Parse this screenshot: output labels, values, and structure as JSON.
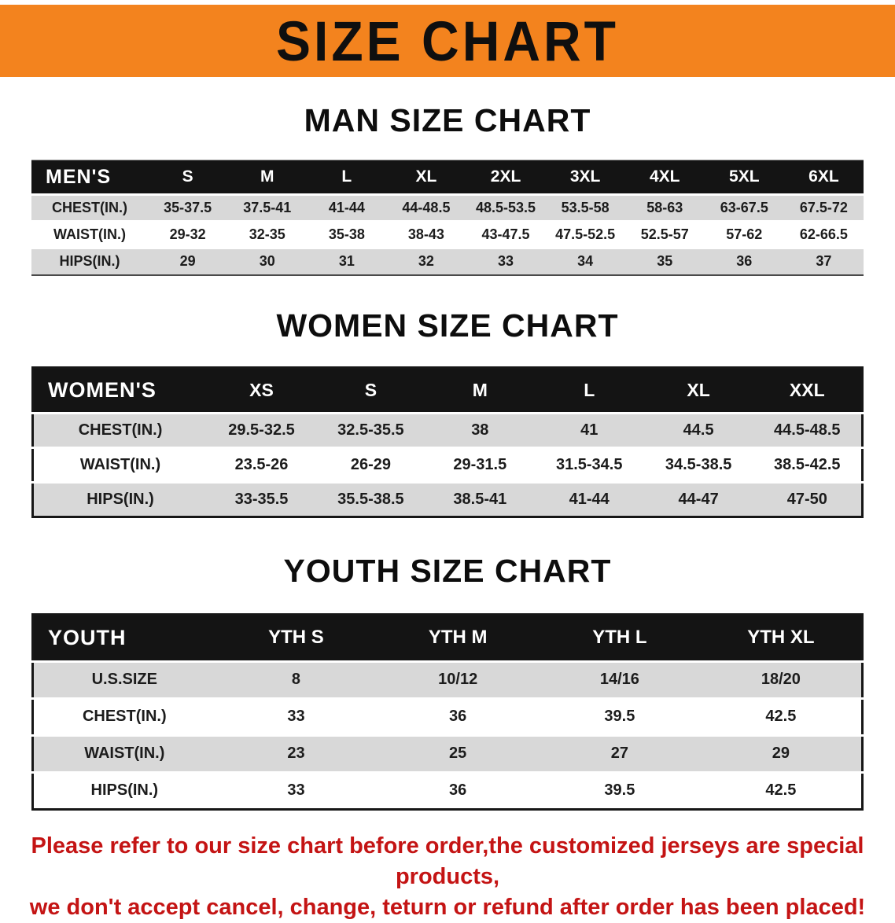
{
  "banner": {
    "title": "SIZE CHART",
    "bg_color": "#f3831e"
  },
  "men": {
    "heading": "MAN SIZE CHART",
    "table": {
      "header": [
        "MEN'S",
        "S",
        "M",
        "L",
        "XL",
        "2XL",
        "3XL",
        "4XL",
        "5XL",
        "6XL"
      ],
      "rows": [
        [
          "CHEST(IN.)",
          "35-37.5",
          "37.5-41",
          "41-44",
          "44-48.5",
          "48.5-53.5",
          "53.5-58",
          "58-63",
          "63-67.5",
          "67.5-72"
        ],
        [
          "WAIST(IN.)",
          "29-32",
          "32-35",
          "35-38",
          "38-43",
          "43-47.5",
          "47.5-52.5",
          "52.5-57",
          "57-62",
          "62-66.5"
        ],
        [
          "HIPS(IN.)",
          "29",
          "30",
          "31",
          "32",
          "33",
          "34",
          "35",
          "36",
          "37"
        ]
      ]
    }
  },
  "women": {
    "heading": "WOMEN SIZE CHART",
    "table": {
      "header": [
        "WOMEN'S",
        "XS",
        "S",
        "M",
        "L",
        "XL",
        "XXL"
      ],
      "rows": [
        [
          "CHEST(IN.)",
          "29.5-32.5",
          "32.5-35.5",
          "38",
          "41",
          "44.5",
          "44.5-48.5"
        ],
        [
          "WAIST(IN.)",
          "23.5-26",
          "26-29",
          "29-31.5",
          "31.5-34.5",
          "34.5-38.5",
          "38.5-42.5"
        ],
        [
          "HIPS(IN.)",
          "33-35.5",
          "35.5-38.5",
          "38.5-41",
          "41-44",
          "44-47",
          "47-50"
        ]
      ]
    }
  },
  "youth": {
    "heading": "YOUTH SIZE CHART",
    "table": {
      "header": [
        "YOUTH",
        "YTH S",
        "YTH M",
        "YTH L",
        "YTH XL"
      ],
      "rows": [
        [
          "U.S.SIZE",
          "8",
          "10/12",
          "14/16",
          "18/20"
        ],
        [
          "CHEST(IN.)",
          "33",
          "36",
          "39.5",
          "42.5"
        ],
        [
          "WAIST(IN.)",
          "23",
          "25",
          "27",
          "29"
        ],
        [
          "HIPS(IN.)",
          "33",
          "36",
          "39.5",
          "42.5"
        ]
      ]
    }
  },
  "disclaimer": {
    "line1": "Please refer to our size chart before order,the customized jerseys are special products,",
    "line2": "we don't accept cancel, change, teturn or refund after order has been placed!"
  },
  "colors": {
    "banner_orange": "#f3831e",
    "header_black": "#141414",
    "row_gray": "#d8d8d8",
    "disclaimer_red": "#c41414"
  }
}
